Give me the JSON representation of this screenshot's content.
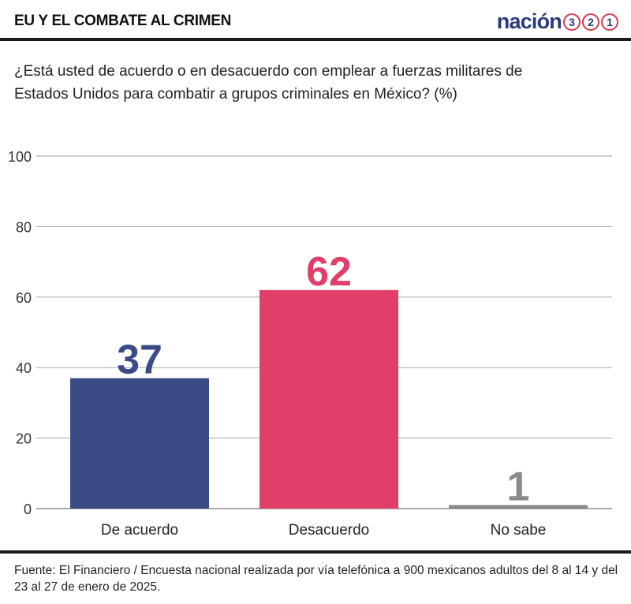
{
  "header": {
    "title": "EU Y EL COMBATE AL CRIMEN"
  },
  "logo": {
    "word": "nación",
    "digits": [
      "3",
      "2",
      "1"
    ]
  },
  "question": "¿Está usted de acuerdo o en desacuerdo con emplear a fuerzas militares de Estados Unidos para combatir a grupos criminales en México?  (%)",
  "source": "Fuente: El Financiero / Encuesta nacional realizada por vía telefónica a 900 mexicanos adultos del 8 al 14 y del 23 al 27 de enero de 2025.",
  "chart_data": {
    "type": "bar",
    "categories": [
      "De acuerdo",
      "Desacuerdo",
      "No sabe"
    ],
    "values": [
      37,
      62,
      1
    ],
    "colors": [
      "#3a4b85",
      "#e03f69",
      "#8a8a8a"
    ],
    "ylim": [
      0,
      100
    ],
    "yticks": [
      0,
      20,
      40,
      60,
      80,
      100
    ],
    "grid": true,
    "data_labels": true,
    "xlabel": "",
    "ylabel": ""
  }
}
